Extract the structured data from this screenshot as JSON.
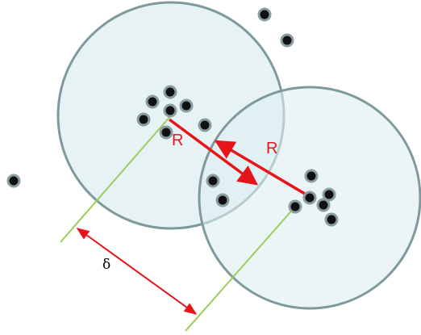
{
  "labels": {
    "radius_left": "R",
    "radius_right": "R",
    "delta": "δ"
  },
  "colors": {
    "circle_fill": "#ddeef0",
    "circle_stroke": "#7f9a9c",
    "point_fill": "#111111",
    "point_stroke": "#8a9ea2",
    "radius_arrow": "#e8141b",
    "guide_line": "#9acd5a",
    "text": "#000000"
  }
}
